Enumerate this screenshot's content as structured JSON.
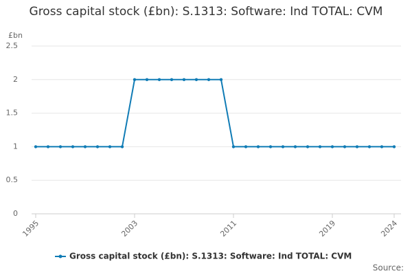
{
  "chart_data": {
    "type": "line",
    "title": "Gross capital stock (£bn): S.1313: Software: Ind TOTAL: CVM",
    "y_unit": "£bn",
    "source": "Source:",
    "x": [
      1995,
      1996,
      1997,
      1998,
      1999,
      2000,
      2001,
      2002,
      2003,
      2004,
      2005,
      2006,
      2007,
      2008,
      2009,
      2010,
      2011,
      2012,
      2013,
      2014,
      2015,
      2016,
      2017,
      2018,
      2019,
      2020,
      2021,
      2022,
      2023,
      2024
    ],
    "series": [
      {
        "name": "Gross capital stock (£bn): S.1313: Software: Ind TOTAL: CVM",
        "color": "#0f7bb5",
        "values": [
          1,
          1,
          1,
          1,
          1,
          1,
          1,
          1,
          2,
          2,
          2,
          2,
          2,
          2,
          2,
          2,
          1,
          1,
          1,
          1,
          1,
          1,
          1,
          1,
          1,
          1,
          1,
          1,
          1,
          1
        ]
      }
    ],
    "xlim": [
      1995,
      2024
    ],
    "xticks": [
      1995,
      2003,
      2011,
      2019,
      2024
    ],
    "ylim": [
      0,
      2.5
    ],
    "yticks": [
      0,
      0.5,
      1,
      1.5,
      2,
      2.5
    ],
    "grid": true
  }
}
